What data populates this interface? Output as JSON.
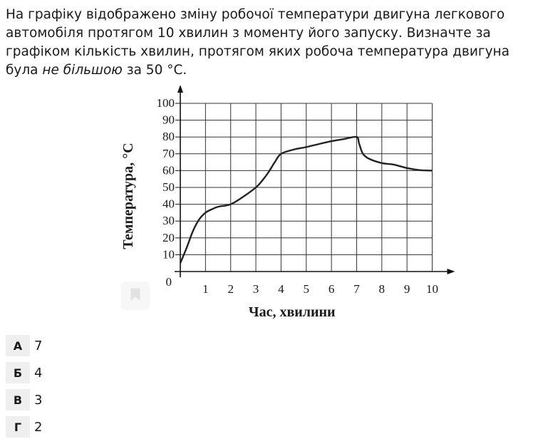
{
  "question": {
    "text_before": "На графіку відображено зміну робочої температури двигуна легкового автомобіля протягом 10 хвилин з моменту його запуску. Визначте за графіком кількість хвилин, протягом яких робоча температура двигуна була ",
    "emphasis": "не більшою",
    "text_after": " за 50 °C."
  },
  "chart_data": {
    "type": "line",
    "xlabel": "Час, хвилини",
    "ylabel": "Температура, °C",
    "x_ticks": [
      "1",
      "2",
      "3",
      "4",
      "5",
      "6",
      "7",
      "8",
      "9",
      "10"
    ],
    "y_ticks": [
      "10",
      "20",
      "30",
      "40",
      "50",
      "60",
      "70",
      "80",
      "90",
      "100"
    ],
    "origin_label": "0",
    "xlim": [
      0,
      10
    ],
    "ylim": [
      0,
      100
    ],
    "grid": true,
    "series": [
      {
        "x": [
          0,
          0.25,
          0.5,
          0.75,
          1,
          1.25,
          1.5,
          2,
          2.5,
          3,
          3.25,
          3.5,
          3.75,
          4,
          4.5,
          5,
          5.5,
          6,
          6.5,
          7,
          7.1,
          7.25,
          7.5,
          8,
          8.5,
          9,
          9.5,
          10
        ],
        "y": [
          5,
          14,
          24,
          31,
          35,
          37,
          38.5,
          40,
          44.5,
          50,
          54,
          59,
          65,
          70,
          72.5,
          74,
          75.8,
          77.5,
          78.8,
          80,
          76,
          70,
          67,
          64.5,
          63.5,
          61.5,
          60.3,
          60
        ]
      }
    ]
  },
  "options": [
    {
      "letter": "А",
      "value": "7"
    },
    {
      "letter": "Б",
      "value": "4"
    },
    {
      "letter": "В",
      "value": "3"
    },
    {
      "letter": "Г",
      "value": "2"
    }
  ]
}
